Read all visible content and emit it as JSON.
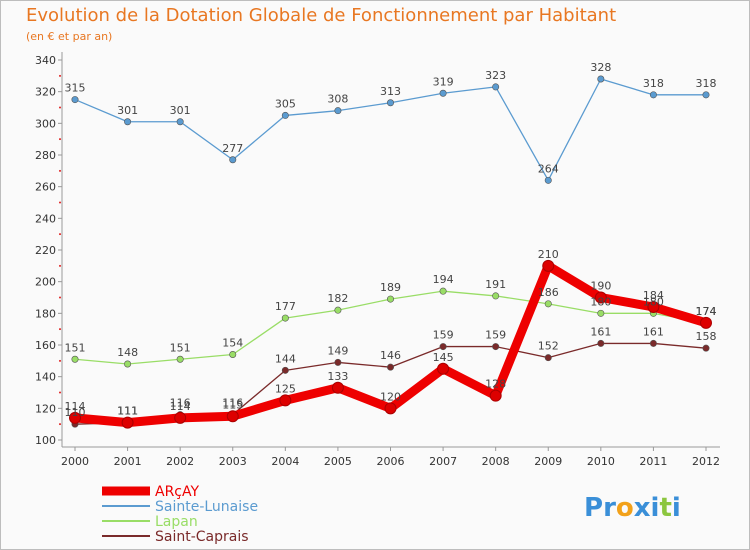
{
  "chart_data": {
    "type": "line",
    "title": "Evolution de la Dotation Globale de Fonctionnement par Habitant",
    "subtitle": "(en € et par an)",
    "xlabel": "",
    "ylabel": "",
    "x": [
      "2000",
      "2001",
      "2002",
      "2003",
      "2004",
      "2005",
      "2006",
      "2007",
      "2008",
      "2009",
      "2010",
      "2011",
      "2012"
    ],
    "ylim": [
      100,
      340
    ],
    "yticks": [
      100,
      120,
      140,
      160,
      180,
      200,
      220,
      240,
      260,
      280,
      300,
      320,
      340
    ],
    "grid": false,
    "legend_position": "bottom-left",
    "series": [
      {
        "name": "ARçAY",
        "color": "#ee0000",
        "values": [
          114,
          111,
          114,
          115,
          125,
          133,
          120,
          145,
          128,
          210,
          190,
          184,
          174
        ]
      },
      {
        "name": "Sainte-Lunaise",
        "color": "#5b9bd0",
        "values": [
          315,
          301,
          301,
          277,
          305,
          308,
          313,
          319,
          323,
          264,
          328,
          318,
          318
        ]
      },
      {
        "name": "Lapan",
        "color": "#99dd66",
        "values": [
          151,
          148,
          151,
          154,
          177,
          182,
          189,
          194,
          191,
          186,
          180,
          180,
          174
        ]
      },
      {
        "name": "Saint-Caprais",
        "color": "#7a2a2a",
        "values": [
          110,
          111,
          116,
          116,
          144,
          149,
          146,
          159,
          159,
          152,
          161,
          161,
          158
        ]
      }
    ]
  },
  "logo": {
    "letters": [
      "P",
      "r",
      "o",
      "x",
      "i",
      "t",
      "i"
    ],
    "colors": [
      "#3a8fd8",
      "#3a8fd8",
      "#f2a11a",
      "#3a8fd8",
      "#3a8fd8",
      "#8cc63f",
      "#3a8fd8"
    ]
  }
}
